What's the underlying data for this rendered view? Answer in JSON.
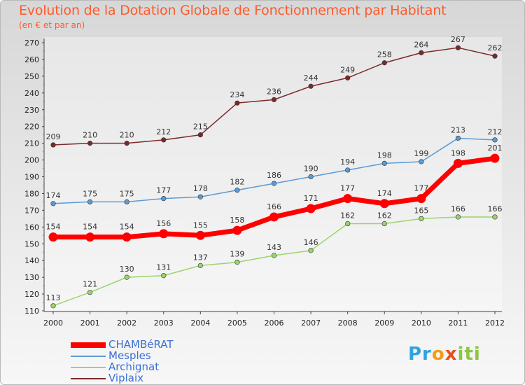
{
  "chart_data": {
    "type": "line",
    "title": "Evolution de la Dotation Globale de Fonctionnement par Habitant",
    "subtitle": "(en € et par an)",
    "xlabel": "",
    "ylabel": "",
    "x": [
      "2000",
      "2001",
      "2002",
      "2003",
      "2004",
      "2005",
      "2006",
      "2007",
      "2008",
      "2009",
      "2010",
      "2011",
      "2012"
    ],
    "ylim": [
      110,
      270
    ],
    "yticks": [
      110,
      120,
      130,
      140,
      150,
      160,
      170,
      180,
      190,
      200,
      210,
      220,
      230,
      240,
      250,
      260,
      270
    ],
    "grid": false,
    "legend": "bottom-left",
    "series": [
      {
        "name": "CHAMBéRAT",
        "color": "#ff0000",
        "emphasis": true,
        "values": [
          154,
          154,
          154,
          156,
          155,
          158,
          166,
          171,
          177,
          174,
          177,
          198,
          201
        ]
      },
      {
        "name": "Mesples",
        "color": "#5b9bd5",
        "emphasis": false,
        "values": [
          174,
          175,
          175,
          177,
          178,
          182,
          186,
          190,
          194,
          198,
          199,
          213,
          212
        ]
      },
      {
        "name": "Archignat",
        "color": "#9cd46b",
        "emphasis": false,
        "values": [
          113,
          121,
          130,
          131,
          137,
          139,
          143,
          146,
          162,
          162,
          165,
          166,
          166
        ]
      },
      {
        "name": "Viplaix",
        "color": "#7b2a2a",
        "emphasis": false,
        "values": [
          209,
          210,
          210,
          212,
          215,
          234,
          236,
          244,
          249,
          258,
          264,
          267,
          262
        ]
      }
    ]
  },
  "logo": {
    "p1": "Pr",
    "p2": "o",
    "p3": "x",
    "p4": "iti"
  }
}
